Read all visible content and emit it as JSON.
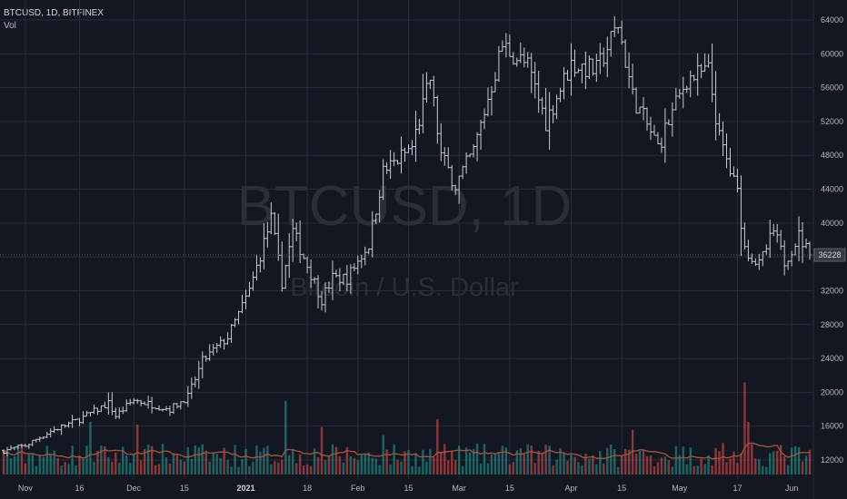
{
  "header": {
    "symbol_line": "BTCUSD, 1D, BITFINEX",
    "volume_label": "Vol"
  },
  "watermark": {
    "symbol": "BTCUSD, 1D",
    "description": "Bitcoin / U.S. Dollar"
  },
  "colors": {
    "background": "#131722",
    "grid": "#2a2e39",
    "bar": "#c8cbd3",
    "vol_up": "#26a69a",
    "vol_down": "#ef5350",
    "vol_ma": "#a8553f",
    "last_price_box": "#363a45"
  },
  "chart_data": {
    "type": "ohlc",
    "interval": "1D",
    "exchange": "BITFINEX",
    "x_tick_labels": [
      "Nov",
      "16",
      "Dec",
      "15",
      "2021",
      "18",
      "Feb",
      "15",
      "Mar",
      "15",
      "Apr",
      "15",
      "May",
      "17",
      "Jun"
    ],
    "y_tick_labels": [
      "64000",
      "60000",
      "56000",
      "52000",
      "48000",
      "44000",
      "40000",
      "36000",
      "32000",
      "28000",
      "24000",
      "20000",
      "16000",
      "12000"
    ],
    "last_price": "36228",
    "grid": true,
    "price_anchors": [
      [
        "2020-10-26",
        13100
      ],
      [
        "2020-11-01",
        13700
      ],
      [
        "2020-11-08",
        15400
      ],
      [
        "2020-11-16",
        16800
      ],
      [
        "2020-11-24",
        18700
      ],
      [
        "2020-11-26",
        17200
      ],
      [
        "2020-12-01",
        19100
      ],
      [
        "2020-12-11",
        18000
      ],
      [
        "2020-12-16",
        19500
      ],
      [
        "2020-12-20",
        23700
      ],
      [
        "2020-12-27",
        26500
      ],
      [
        "2021-01-02",
        32000
      ],
      [
        "2021-01-08",
        40500
      ],
      [
        "2021-01-11",
        33000
      ],
      [
        "2021-01-14",
        39000
      ],
      [
        "2021-01-22",
        31000
      ],
      [
        "2021-01-25",
        33500
      ],
      [
        "2021-01-29",
        33500
      ],
      [
        "2021-02-04",
        37500
      ],
      [
        "2021-02-08",
        46000
      ],
      [
        "2021-02-16",
        49000
      ],
      [
        "2021-02-21",
        57000
      ],
      [
        "2021-02-24",
        48000
      ],
      [
        "2021-02-28",
        44500
      ],
      [
        "2021-03-05",
        48500
      ],
      [
        "2021-03-13",
        61000
      ],
      [
        "2021-03-20",
        58500
      ],
      [
        "2021-03-25",
        52000
      ],
      [
        "2021-04-01",
        58800
      ],
      [
        "2021-04-08",
        58000
      ],
      [
        "2021-04-14",
        63500
      ],
      [
        "2021-04-18",
        55000
      ],
      [
        "2021-04-25",
        49000
      ],
      [
        "2021-05-03",
        57000
      ],
      [
        "2021-05-09",
        58000
      ],
      [
        "2021-05-12",
        50000
      ],
      [
        "2021-05-17",
        43500
      ],
      [
        "2021-05-19",
        37000
      ],
      [
        "2021-05-23",
        35000
      ],
      [
        "2021-05-27",
        39000
      ],
      [
        "2021-05-30",
        35500
      ],
      [
        "2021-06-03",
        38500
      ],
      [
        "2021-06-06",
        36228
      ]
    ],
    "volume_spikes": [
      [
        "2020-11-19",
        1.0
      ],
      [
        "2020-12-02",
        0.95
      ],
      [
        "2020-12-18",
        0.55
      ],
      [
        "2021-01-04",
        0.55
      ],
      [
        "2021-01-12",
        1.4
      ],
      [
        "2021-01-22",
        0.9
      ],
      [
        "2021-02-08",
        0.75
      ],
      [
        "2021-02-23",
        1.05
      ],
      [
        "2021-03-18",
        0.5
      ],
      [
        "2021-04-18",
        0.85
      ],
      [
        "2021-05-13",
        0.6
      ],
      [
        "2021-05-19",
        1.75
      ],
      [
        "2021-05-20",
        1.0
      ]
    ]
  }
}
